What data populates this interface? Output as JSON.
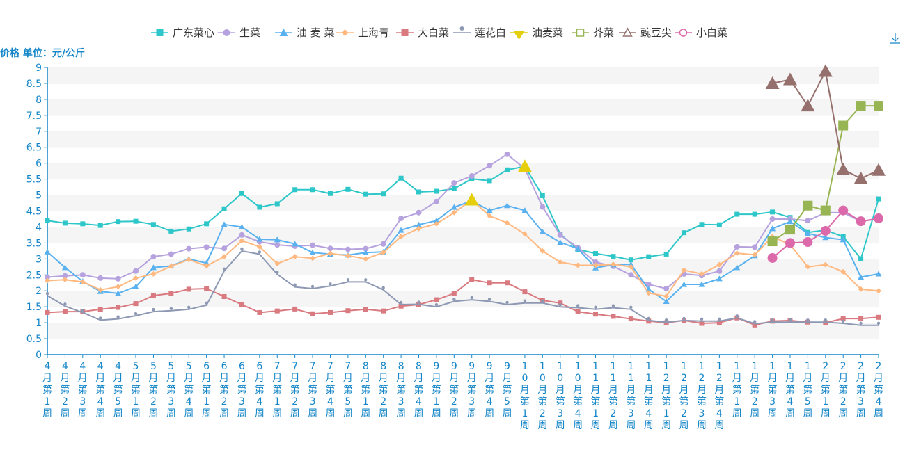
{
  "chart_data": {
    "type": "line",
    "ylabel": "价格 单位：元/公斤",
    "ylim": [
      0,
      9
    ],
    "yticks": [
      "0",
      "0.5",
      "1",
      "1.5",
      "2",
      "2.5",
      "3",
      "3.5",
      "4",
      "4.5",
      "5",
      "5.5",
      "6",
      "6.5",
      "7",
      "7.5",
      "8",
      "8.5",
      "9"
    ],
    "legend_position": "top-center",
    "grid": "horizontal bands",
    "categories": [
      "4月第1周",
      "4月第2周",
      "4月第3周",
      "4月第4周",
      "4月第5周",
      "5月第1周",
      "5月第2周",
      "5月第3周",
      "5月第4周",
      "6月第1周",
      "6月第2周",
      "6月第3周",
      "6月第4周",
      "7月第1周",
      "7月第2周",
      "7月第3周",
      "7月第4周",
      "7月第5周",
      "8月第1周",
      "8月第2周",
      "8月第3周",
      "8月第4周",
      "9月第1周",
      "9月第2周",
      "9月第3周",
      "9月第4周",
      "9月第5周",
      "10月第1周",
      "10月第2周",
      "10月第3周",
      "10月第4周",
      "11月第1周",
      "11月第2周",
      "11月第3周",
      "11月第4周",
      "12月第1周",
      "12月第2周",
      "12月第3周",
      "12月第4周",
      "1月第1周",
      "1月第2周",
      "1月第3周",
      "1月第4周",
      "1月第5周",
      "2月第1周",
      "2月第2周",
      "2月第3周",
      "2月第4周"
    ],
    "series": [
      {
        "name": "广东菜心",
        "color": "#2ec7c9",
        "marker": "square",
        "values": [
          4.2,
          4.12,
          4.1,
          4.05,
          4.17,
          4.18,
          4.08,
          3.87,
          3.94,
          4.1,
          4.57,
          5.05,
          4.62,
          4.73,
          5.17,
          5.17,
          5.05,
          5.18,
          5.03,
          5.04,
          5.53,
          5.1,
          5.12,
          5.2,
          5.51,
          5.45,
          5.79,
          5.9,
          4.98,
          3.78,
          3.3,
          3.17,
          3.08,
          2.97,
          3.07,
          3.15,
          3.82,
          4.08,
          4.07,
          4.4,
          4.4,
          4.47,
          4.3,
          3.83,
          3.9,
          3.7,
          3.0,
          4.88
        ]
      },
      {
        "name": "生菜",
        "color": "#b6a2de",
        "marker": "circle",
        "values": [
          2.43,
          2.47,
          2.5,
          2.4,
          2.38,
          2.62,
          3.07,
          3.15,
          3.32,
          3.37,
          3.33,
          3.75,
          3.54,
          3.44,
          3.4,
          3.43,
          3.33,
          3.3,
          3.32,
          3.47,
          4.27,
          4.45,
          4.8,
          5.38,
          5.6,
          5.92,
          6.28,
          5.83,
          4.63,
          3.75,
          3.35,
          2.9,
          2.77,
          2.5,
          2.2,
          2.07,
          2.53,
          2.48,
          2.62,
          3.38,
          3.37,
          4.25,
          4.25,
          4.2,
          4.45,
          4.45,
          4.18,
          4.25
        ]
      },
      {
        "name": "油 麦 菜",
        "color": "#5ab1ef",
        "marker": "triangle",
        "values": [
          3.22,
          2.73,
          2.3,
          1.98,
          1.92,
          2.13,
          2.73,
          2.78,
          3.0,
          2.87,
          4.08,
          4.0,
          3.62,
          3.6,
          3.47,
          3.2,
          3.15,
          3.12,
          3.2,
          3.22,
          3.9,
          4.07,
          4.2,
          4.62,
          4.82,
          4.52,
          4.67,
          4.52,
          3.85,
          3.52,
          3.32,
          2.72,
          2.82,
          2.83,
          2.05,
          1.67,
          2.2,
          2.2,
          2.38,
          2.73,
          3.1,
          3.95,
          4.17,
          3.8,
          3.67,
          3.6,
          2.43,
          2.53
        ]
      },
      {
        "name": "上海青",
        "color": "#ffb980",
        "marker": "diamond",
        "values": [
          2.32,
          2.35,
          2.28,
          2.03,
          2.13,
          2.4,
          2.53,
          2.77,
          2.98,
          2.78,
          3.07,
          3.57,
          3.38,
          2.85,
          3.07,
          3.02,
          3.17,
          3.1,
          3.0,
          3.2,
          3.7,
          3.95,
          4.1,
          4.45,
          4.85,
          4.35,
          4.13,
          3.78,
          3.25,
          2.9,
          2.8,
          2.8,
          2.83,
          2.75,
          1.93,
          1.83,
          2.65,
          2.53,
          2.82,
          3.18,
          3.13,
          3.7,
          3.45,
          2.75,
          2.82,
          2.6,
          2.05,
          2.0
        ]
      },
      {
        "name": "大白菜",
        "color": "#d87a80",
        "marker": "square",
        "values": [
          1.32,
          1.35,
          1.35,
          1.42,
          1.48,
          1.6,
          1.85,
          1.92,
          2.05,
          2.07,
          1.82,
          1.57,
          1.32,
          1.37,
          1.43,
          1.28,
          1.32,
          1.38,
          1.42,
          1.37,
          1.52,
          1.57,
          1.72,
          1.92,
          2.35,
          2.25,
          2.25,
          1.97,
          1.7,
          1.62,
          1.35,
          1.27,
          1.2,
          1.12,
          1.05,
          1.0,
          1.07,
          0.98,
          1.0,
          1.15,
          0.93,
          1.05,
          1.07,
          1.02,
          1.0,
          1.13,
          1.13,
          1.17
        ]
      },
      {
        "name": "莲花白",
        "color": "#8d98b3",
        "marker": "pin",
        "values": [
          1.85,
          1.52,
          1.32,
          1.08,
          1.12,
          1.22,
          1.35,
          1.38,
          1.42,
          1.55,
          2.62,
          3.25,
          3.15,
          2.52,
          2.12,
          2.07,
          2.15,
          2.28,
          2.28,
          2.03,
          1.57,
          1.58,
          1.5,
          1.67,
          1.72,
          1.67,
          1.57,
          1.62,
          1.62,
          1.5,
          1.47,
          1.42,
          1.47,
          1.42,
          1.07,
          1.02,
          1.07,
          1.05,
          1.05,
          1.15,
          0.97,
          1.02,
          1.02,
          1.02,
          1.02,
          0.98,
          0.92,
          0.92
        ]
      },
      {
        "name": "油麦菜",
        "color": "#e5cf0d",
        "marker": "bigtriangle",
        "values": [
          null,
          null,
          null,
          null,
          null,
          null,
          null,
          null,
          null,
          null,
          null,
          null,
          null,
          null,
          null,
          null,
          null,
          null,
          null,
          null,
          null,
          null,
          null,
          null,
          4.85,
          null,
          null,
          5.9,
          null,
          null,
          null,
          null,
          null,
          null,
          null,
          null,
          null,
          null,
          null,
          null,
          null,
          null,
          null,
          null,
          null,
          null,
          null,
          null
        ]
      },
      {
        "name": "芥菜",
        "color": "#97b552",
        "marker": "bigsquare",
        "values": [
          null,
          null,
          null,
          null,
          null,
          null,
          null,
          null,
          null,
          null,
          null,
          null,
          null,
          null,
          null,
          null,
          null,
          null,
          null,
          null,
          null,
          null,
          null,
          null,
          null,
          null,
          null,
          null,
          null,
          null,
          null,
          null,
          null,
          null,
          null,
          null,
          null,
          null,
          null,
          null,
          null,
          3.55,
          3.92,
          4.67,
          4.52,
          7.18,
          7.8,
          7.8
        ]
      },
      {
        "name": "豌豆尖",
        "color": "#95706d",
        "marker": "bigtriangle",
        "values": [
          null,
          null,
          null,
          null,
          null,
          null,
          null,
          null,
          null,
          null,
          null,
          null,
          null,
          null,
          null,
          null,
          null,
          null,
          null,
          null,
          null,
          null,
          null,
          null,
          null,
          null,
          null,
          null,
          null,
          null,
          null,
          null,
          null,
          null,
          null,
          null,
          null,
          null,
          null,
          null,
          null,
          8.5,
          8.62,
          7.8,
          8.88,
          5.8,
          5.52,
          5.78
        ]
      },
      {
        "name": "小白菜",
        "color": "#dc69aa",
        "marker": "bigcircle",
        "values": [
          null,
          null,
          null,
          null,
          null,
          null,
          null,
          null,
          null,
          null,
          null,
          null,
          null,
          null,
          null,
          null,
          null,
          null,
          null,
          null,
          null,
          null,
          null,
          null,
          null,
          null,
          null,
          null,
          null,
          null,
          null,
          null,
          null,
          null,
          null,
          null,
          null,
          null,
          null,
          null,
          null,
          3.03,
          3.5,
          3.53,
          3.88,
          4.52,
          4.18,
          4.27
        ]
      }
    ]
  },
  "toolbar": {
    "download_icon": "download-icon"
  }
}
